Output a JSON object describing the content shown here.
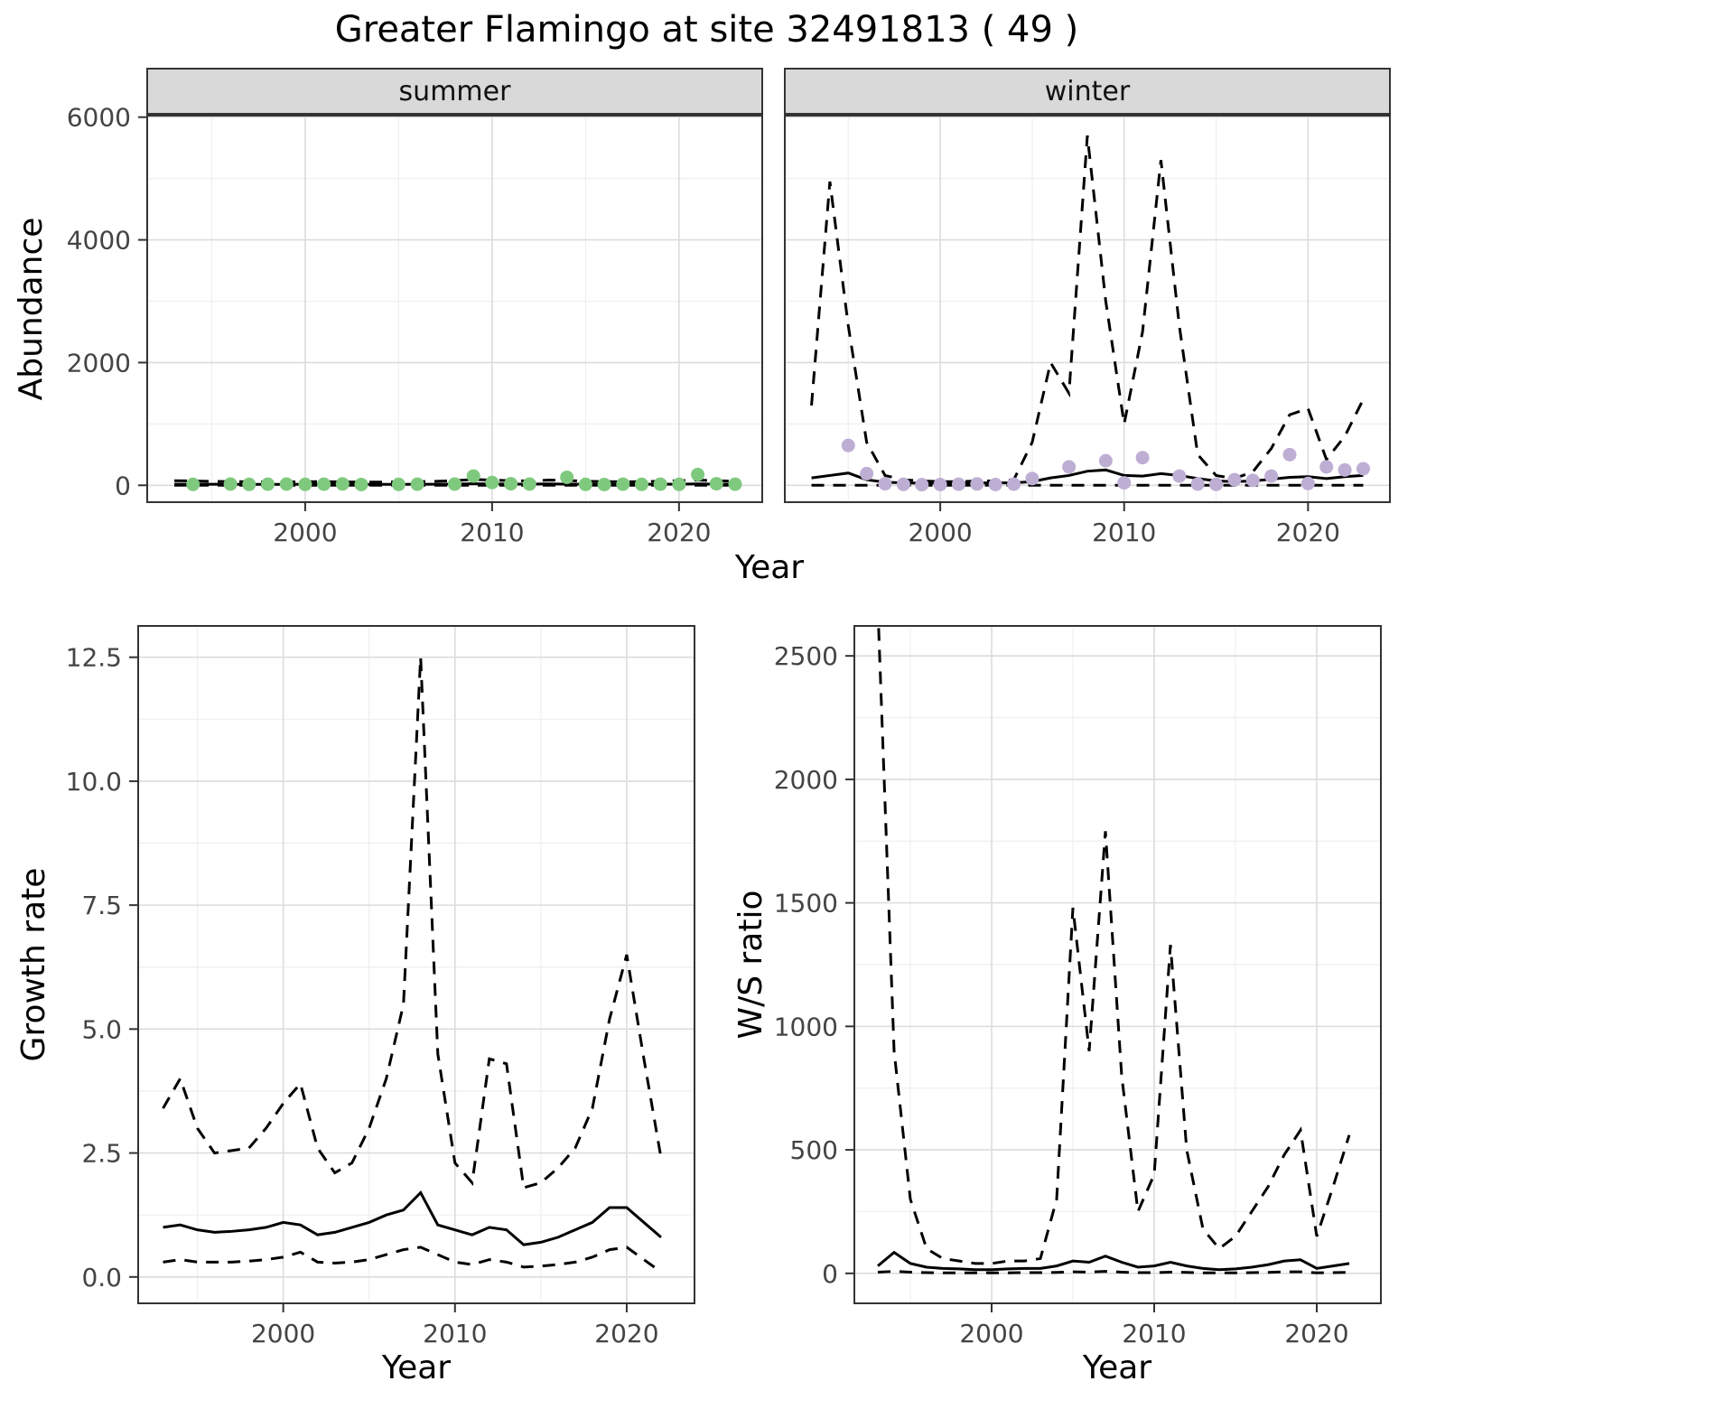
{
  "title": "Greater Flamingo at site 32491813 ( 49 )",
  "labels": {
    "abundance": "Abundance",
    "year": "Year",
    "growth_rate": "Growth rate",
    "ws_ratio": "W/S ratio"
  },
  "facets": {
    "summer": "summer",
    "winter": "winter"
  },
  "colors": {
    "summer_points": "#7fc97f",
    "winter_points": "#beaed4",
    "line": "#000000",
    "grid_major": "#dcdcdc",
    "grid_minor": "#efefef",
    "strip_bg": "#d9d9d9",
    "panel_border": "#333333",
    "tick_text": "#444444"
  },
  "chart_data": [
    {
      "id": "abundance-summer",
      "type": "scatter",
      "facet": "summer",
      "xlabel": "Year",
      "ylabel": "Abundance",
      "xlim": [
        1991.5,
        2024.5
      ],
      "ylim": [
        -290,
        6040
      ],
      "xticks": [
        2000,
        2010,
        2020
      ],
      "yticks": [
        0,
        2000,
        4000,
        6000
      ],
      "xtick_labels": [
        "2000",
        "2010",
        "2020"
      ],
      "ytick_labels": [
        "0",
        "2000",
        "4000",
        "6000"
      ],
      "points": {
        "color": "#7fc97f",
        "x": [
          1994,
          1996,
          1997,
          1998,
          1999,
          2000,
          2001,
          2002,
          2003,
          2005,
          2006,
          2008,
          2009,
          2010,
          2011,
          2012,
          2014,
          2015,
          2016,
          2017,
          2018,
          2019,
          2020,
          2021,
          2022,
          2023
        ],
        "y": [
          15,
          20,
          15,
          18,
          20,
          15,
          18,
          22,
          12,
          15,
          18,
          20,
          150,
          45,
          25,
          20,
          130,
          15,
          12,
          18,
          15,
          18,
          15,
          175,
          25,
          18
        ]
      },
      "fit": {
        "x": [
          1993,
          1994,
          1995,
          1996,
          1997,
          1998,
          1999,
          2000,
          2001,
          2002,
          2003,
          2004,
          2005,
          2006,
          2007,
          2008,
          2009,
          2010,
          2011,
          2012,
          2013,
          2014,
          2015,
          2016,
          2017,
          2018,
          2019,
          2020,
          2021,
          2022,
          2023
        ],
        "mean": [
          18,
          18,
          17,
          17,
          16,
          16,
          16,
          17,
          17,
          16,
          15,
          15,
          16,
          17,
          18,
          20,
          24,
          22,
          20,
          19,
          22,
          20,
          17,
          16,
          16,
          17,
          18,
          20,
          22,
          20,
          18
        ],
        "upper": [
          75,
          70,
          65,
          60,
          58,
          55,
          55,
          58,
          60,
          55,
          52,
          52,
          55,
          60,
          65,
          75,
          95,
          85,
          75,
          70,
          85,
          80,
          65,
          60,
          58,
          60,
          65,
          75,
          85,
          75,
          65
        ],
        "lower": [
          0,
          0,
          0,
          0,
          0,
          0,
          0,
          0,
          0,
          0,
          0,
          0,
          0,
          0,
          0,
          0,
          0,
          0,
          0,
          0,
          0,
          0,
          0,
          0,
          0,
          0,
          0,
          0,
          0,
          0,
          0
        ]
      }
    },
    {
      "id": "abundance-winter",
      "type": "scatter",
      "facet": "winter",
      "xlabel": "Year",
      "ylabel": "Abundance",
      "xlim": [
        1991.5,
        2024.5
      ],
      "ylim": [
        -290,
        6040
      ],
      "xticks": [
        2000,
        2010,
        2020
      ],
      "yticks": [
        0,
        2000,
        4000,
        6000
      ],
      "xtick_labels": [
        "2000",
        "2010",
        "2020"
      ],
      "ytick_labels": [
        "0",
        "2000",
        "4000",
        "6000"
      ],
      "points": {
        "color": "#beaed4",
        "x": [
          1995,
          1996,
          1997,
          1998,
          1999,
          2000,
          2001,
          2002,
          2003,
          2004,
          2005,
          2007,
          2009,
          2010,
          2011,
          2013,
          2014,
          2015,
          2016,
          2017,
          2018,
          2019,
          2020,
          2021,
          2022,
          2023
        ],
        "y": [
          650,
          190,
          25,
          15,
          10,
          12,
          18,
          22,
          12,
          18,
          110,
          300,
          400,
          40,
          450,
          150,
          20,
          15,
          90,
          80,
          150,
          500,
          30,
          300,
          250,
          270
        ]
      },
      "fit": {
        "x": [
          1993,
          1994,
          1995,
          1996,
          1997,
          1998,
          1999,
          2000,
          2001,
          2002,
          2003,
          2004,
          2005,
          2006,
          2007,
          2008,
          2009,
          2010,
          2011,
          2012,
          2013,
          2014,
          2015,
          2016,
          2017,
          2018,
          2019,
          2020,
          2021,
          2022,
          2023
        ],
        "mean": [
          120,
          160,
          200,
          90,
          50,
          40,
          35,
          35,
          35,
          40,
          40,
          40,
          60,
          120,
          160,
          230,
          250,
          160,
          150,
          190,
          160,
          110,
          70,
          60,
          70,
          100,
          130,
          140,
          110,
          140,
          160
        ],
        "upper": [
          1300,
          4950,
          2600,
          700,
          160,
          90,
          70,
          60,
          60,
          70,
          70,
          90,
          700,
          2000,
          1500,
          5700,
          3000,
          1000,
          2500,
          5300,
          2600,
          500,
          160,
          110,
          220,
          600,
          1150,
          1250,
          420,
          800,
          1400
        ],
        "lower": [
          0,
          0,
          0,
          0,
          0,
          0,
          0,
          0,
          0,
          0,
          0,
          0,
          0,
          0,
          0,
          0,
          0,
          0,
          0,
          0,
          0,
          0,
          0,
          0,
          0,
          0,
          0,
          0,
          0,
          0,
          0
        ]
      }
    },
    {
      "id": "growth-rate",
      "type": "line",
      "xlabel": "Year",
      "ylabel": "Growth rate",
      "xlim": [
        1991.5,
        2024
      ],
      "ylim": [
        -0.55,
        13.15
      ],
      "xticks": [
        2000,
        2010,
        2020
      ],
      "yticks": [
        0,
        2.5,
        5,
        7.5,
        10,
        12.5
      ],
      "xtick_labels": [
        "2000",
        "2010",
        "2020"
      ],
      "ytick_labels": [
        "0.0",
        "2.5",
        "5.0",
        "7.5",
        "10.0",
        "12.5"
      ],
      "fit": {
        "x": [
          1993,
          1994,
          1995,
          1996,
          1997,
          1998,
          1999,
          2000,
          2001,
          2002,
          2003,
          2004,
          2005,
          2006,
          2007,
          2008,
          2009,
          2010,
          2011,
          2012,
          2013,
          2014,
          2015,
          2016,
          2017,
          2018,
          2019,
          2020,
          2021,
          2022
        ],
        "mean": [
          1.0,
          1.05,
          0.95,
          0.9,
          0.92,
          0.95,
          1.0,
          1.1,
          1.05,
          0.85,
          0.9,
          1.0,
          1.1,
          1.25,
          1.35,
          1.7,
          1.05,
          0.95,
          0.85,
          1.0,
          0.95,
          0.65,
          0.7,
          0.8,
          0.95,
          1.1,
          1.4,
          1.4,
          1.1,
          0.8
        ],
        "upper": [
          3.4,
          4.0,
          3.0,
          2.5,
          2.55,
          2.6,
          3.0,
          3.5,
          3.9,
          2.6,
          2.1,
          2.3,
          3.0,
          4.0,
          5.5,
          12.5,
          4.5,
          2.3,
          1.9,
          4.4,
          4.3,
          1.8,
          1.9,
          2.2,
          2.6,
          3.4,
          5.2,
          6.5,
          4.4,
          2.4
        ],
        "lower": [
          0.3,
          0.35,
          0.3,
          0.3,
          0.3,
          0.32,
          0.35,
          0.4,
          0.5,
          0.3,
          0.28,
          0.3,
          0.35,
          0.45,
          0.55,
          0.6,
          0.45,
          0.3,
          0.25,
          0.35,
          0.3,
          0.2,
          0.22,
          0.25,
          0.3,
          0.4,
          0.55,
          0.6,
          0.35,
          0.1
        ]
      }
    },
    {
      "id": "ws-ratio",
      "type": "line",
      "xlabel": "Year",
      "ylabel": "W/S ratio",
      "xlim": [
        1991.5,
        2024
      ],
      "ylim": [
        -125,
        2625
      ],
      "xticks": [
        2000,
        2010,
        2020
      ],
      "yticks": [
        0,
        500,
        1000,
        1500,
        2000,
        2500
      ],
      "xtick_labels": [
        "2000",
        "2010",
        "2020"
      ],
      "ytick_labels": [
        "0",
        "500",
        "1000",
        "1500",
        "2000",
        "2500"
      ],
      "fit": {
        "x": [
          1993,
          1994,
          1995,
          1996,
          1997,
          1998,
          1999,
          2000,
          2001,
          2002,
          2003,
          2004,
          2005,
          2006,
          2007,
          2008,
          2009,
          2010,
          2011,
          2012,
          2013,
          2014,
          2015,
          2016,
          2017,
          2018,
          2019,
          2020,
          2021,
          2022
        ],
        "mean": [
          30,
          85,
          40,
          25,
          20,
          18,
          15,
          15,
          18,
          20,
          20,
          30,
          50,
          45,
          70,
          45,
          25,
          30,
          45,
          30,
          20,
          15,
          18,
          25,
          35,
          50,
          55,
          20,
          30,
          40
        ],
        "upper": [
          2700,
          900,
          300,
          100,
          60,
          50,
          40,
          40,
          50,
          50,
          60,
          300,
          1480,
          900,
          1790,
          800,
          250,
          400,
          1330,
          500,
          180,
          100,
          150,
          250,
          350,
          480,
          580,
          150,
          350,
          560
        ],
        "lower": [
          5,
          8,
          5,
          3,
          2,
          2,
          2,
          2,
          2,
          3,
          3,
          4,
          6,
          5,
          8,
          5,
          3,
          3,
          5,
          4,
          2,
          2,
          2,
          3,
          4,
          6,
          6,
          2,
          3,
          4
        ]
      }
    }
  ]
}
